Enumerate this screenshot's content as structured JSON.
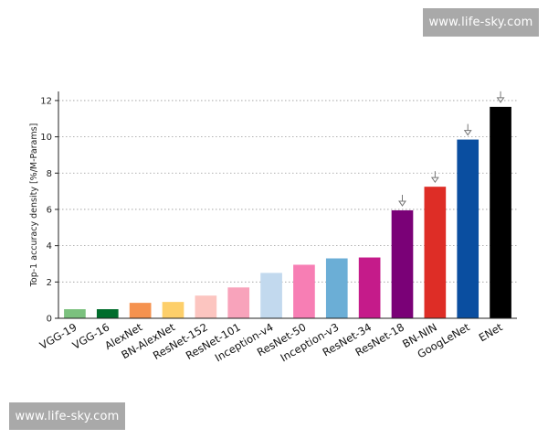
{
  "watermarks": {
    "top": "www.life-sky.com",
    "bottom": "www.life-sky.com"
  },
  "chart_data": {
    "type": "bar",
    "title": "",
    "xlabel": "",
    "ylabel": "Top-1 accuracy density [%/M-Params]",
    "ylim": [
      0,
      12.5
    ],
    "yticks": [
      0,
      2,
      4,
      6,
      8,
      10,
      12
    ],
    "grid": "horizontal-dotted",
    "categories": [
      "VGG-19",
      "VGG-16",
      "AlexNet",
      "BN-AlexNet",
      "ResNet-152",
      "ResNet-101",
      "Inception-v4",
      "ResNet-50",
      "Inception-v3",
      "ResNet-34",
      "ResNet-18",
      "BN-NIN",
      "GoogLeNet",
      "ENet"
    ],
    "values": [
      0.5,
      0.5,
      0.85,
      0.9,
      1.25,
      1.7,
      2.5,
      2.95,
      3.3,
      3.35,
      5.95,
      7.25,
      9.85,
      11.65
    ],
    "colors": [
      "#7bc17e",
      "#006d2c",
      "#f5924f",
      "#fdcf6a",
      "#fcc5c0",
      "#f8a3bb",
      "#c2d9ee",
      "#f77eb4",
      "#6baed6",
      "#c51b8a",
      "#7a0177",
      "#de2d26",
      "#0a4ea0",
      "#000000"
    ],
    "arrow_markers": [
      "ResNet-18",
      "BN-NIN",
      "GoogLeNet",
      "ENet"
    ]
  }
}
